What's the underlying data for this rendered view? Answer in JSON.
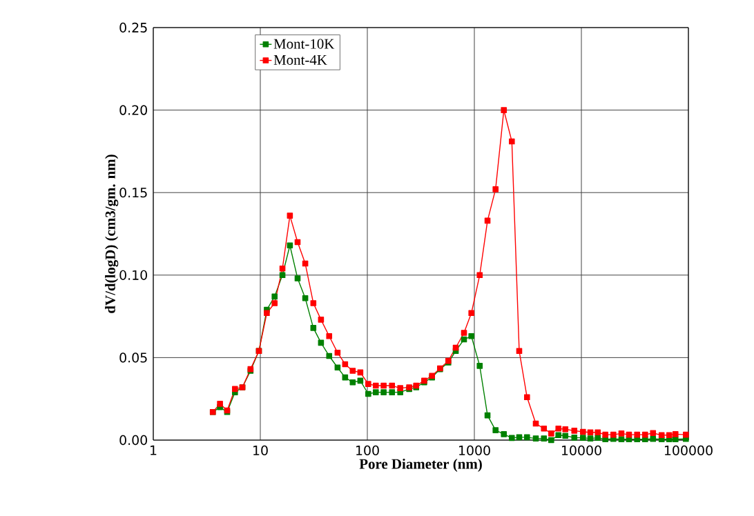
{
  "chart_data": {
    "type": "line",
    "xlabel": "Pore Diameter (nm)",
    "ylabel": "dV/d(logD) (cm3/gm. nm)",
    "x": [
      3.6,
      4.2,
      4.9,
      5.8,
      6.8,
      8.1,
      9.7,
      11.5,
      13.6,
      16.1,
      18.9,
      22.3,
      26.3,
      31.3,
      36.9,
      44,
      52.7,
      62,
      73,
      86,
      102,
      120,
      142,
      170,
      203,
      246,
      286,
      340,
      402,
      478,
      571,
      670,
      800,
      938,
      1122,
      1327,
      1578,
      1886,
      2240,
      2625,
      3106,
      3752,
      4466,
      5225,
      6100,
      7080,
      8590,
      10350,
      12130,
      14230,
      16740,
      19900,
      23660,
      27860,
      33170,
      39400,
      46700,
      56200,
      66200,
      75700,
      94700
    ],
    "series": [
      {
        "name": "Mont-10K",
        "color": "#008000",
        "values": [
          0.017,
          0.02,
          0.017,
          0.029,
          0.032,
          0.042,
          0.054,
          0.079,
          0.087,
          0.1,
          0.118,
          0.098,
          0.086,
          0.068,
          0.059,
          0.051,
          0.044,
          0.038,
          0.035,
          0.036,
          0.028,
          0.029,
          0.029,
          0.029,
          0.029,
          0.031,
          0.032,
          0.035,
          0.038,
          0.043,
          0.047,
          0.054,
          0.061,
          0.063,
          0.045,
          0.015,
          0.006,
          0.0036,
          0.0013,
          0.0017,
          0.0017,
          0.001,
          0.001,
          0.0,
          0.003,
          0.0026,
          0.0015,
          0.0014,
          0.001,
          0.0014,
          0.0005,
          0.0007,
          0.0005,
          0.0005,
          0.0005,
          0.0005,
          0.0007,
          0.0005,
          0.0005,
          0.0005,
          0.0007
        ]
      },
      {
        "name": "Mont-4K",
        "color": "#ff0000",
        "values": [
          0.017,
          0.022,
          0.018,
          0.031,
          0.032,
          0.043,
          0.054,
          0.077,
          0.083,
          0.104,
          0.136,
          0.12,
          0.107,
          0.083,
          0.073,
          0.063,
          0.053,
          0.046,
          0.042,
          0.041,
          0.034,
          0.033,
          0.033,
          0.033,
          0.0315,
          0.032,
          0.033,
          0.036,
          0.039,
          0.0435,
          0.048,
          0.056,
          0.065,
          0.077,
          0.1,
          0.133,
          0.152,
          0.2,
          0.181,
          0.054,
          0.026,
          0.01,
          0.007,
          0.004,
          0.007,
          0.0066,
          0.0057,
          0.005,
          0.0047,
          0.0047,
          0.0033,
          0.0033,
          0.004,
          0.0033,
          0.0033,
          0.0033,
          0.0043,
          0.003,
          0.003,
          0.0036,
          0.0033
        ]
      }
    ],
    "log": "x",
    "xlim": [
      1,
      100000
    ],
    "xticks": [
      1,
      10,
      100,
      1000,
      10000,
      100000
    ],
    "ylim": [
      0,
      0.25
    ],
    "yticks": [
      {
        "value": 0,
        "label": "0.00"
      },
      {
        "value": 0.05,
        "label": "0.05"
      },
      {
        "value": 0.1,
        "label": "0.10"
      },
      {
        "value": 0.15,
        "label": "0.15"
      },
      {
        "value": 0.2,
        "label": "0.20"
      },
      {
        "value": 0.25,
        "label": "0.25"
      }
    ],
    "grid": true,
    "legend": "top left",
    "marker": "square",
    "line_style": "solid"
  }
}
